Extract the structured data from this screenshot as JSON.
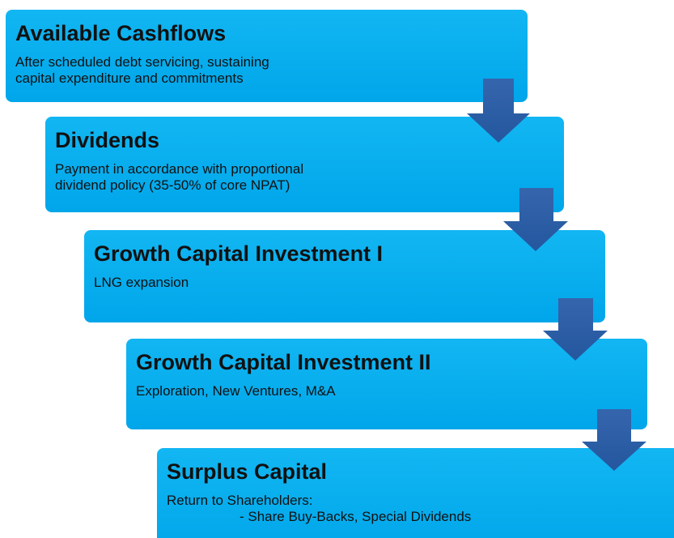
{
  "boxes": [
    {
      "title": "Available Cashflows",
      "lines": [
        "After scheduled debt servicing, sustaining",
        "capital expenditure and commitments"
      ]
    },
    {
      "title": "Dividends",
      "lines": [
        "Payment in accordance with proportional",
        "dividend policy (35-50% of core NPAT)"
      ]
    },
    {
      "title": "Growth Capital Investment I",
      "lines": [
        "LNG expansion"
      ]
    },
    {
      "title": "Growth Capital Investment II",
      "lines": [
        "Exploration, New Ventures, M&A"
      ]
    },
    {
      "title": "Surplus Capital",
      "lines": [
        "Return to Shareholders:",
        "- Share Buy-Backs, Special Dividends"
      ]
    }
  ]
}
